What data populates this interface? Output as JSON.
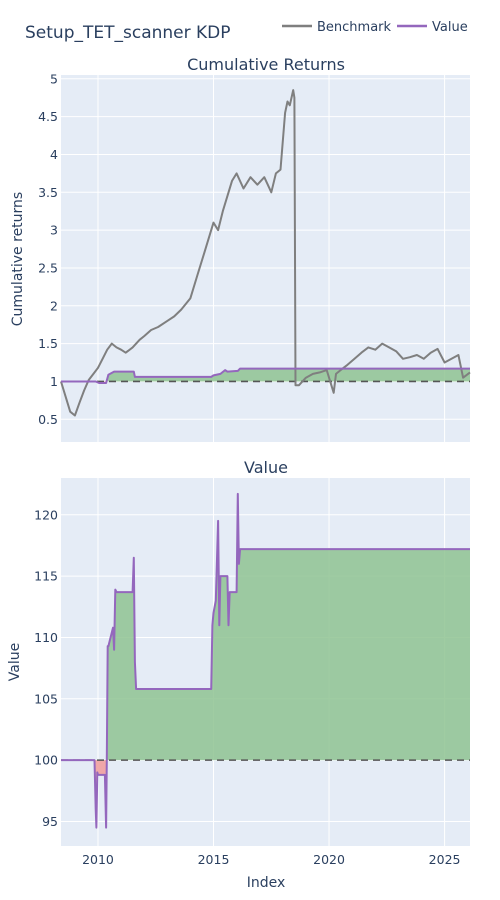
{
  "title": "Setup_TET_scanner KDP",
  "colors": {
    "plot_bg": "#e5ecf6",
    "grid": "#ffffff",
    "benchmark": "#7f7f7f",
    "value": "#9467bd",
    "fill_pos": "#8fc392",
    "fill_neg": "#f0a0a0",
    "baseline": "#555555"
  },
  "legend": {
    "placement": "top-right",
    "items": [
      "Benchmark",
      "Value"
    ]
  },
  "chart_data": [
    {
      "type": "line",
      "title": "Cumulative Returns",
      "xlabel": "",
      "ylabel": "Cumulative returns",
      "xlim": [
        2008.4,
        2026.1
      ],
      "ylim": [
        0.2,
        5.05
      ],
      "y_ticks": [
        "0.5",
        "1",
        "1.5",
        "2",
        "2.5",
        "3",
        "3.5",
        "4",
        "4.5",
        "5"
      ],
      "baseline": 1,
      "series": [
        {
          "name": "Benchmark",
          "x": [
            2008.4,
            2008.6,
            2008.8,
            2009.0,
            2009.2,
            2009.4,
            2009.6,
            2009.8,
            2010.0,
            2010.2,
            2010.4,
            2010.6,
            2010.8,
            2011.0,
            2011.2,
            2011.5,
            2011.8,
            2012.0,
            2012.3,
            2012.6,
            2013.0,
            2013.3,
            2013.6,
            2014.0,
            2014.3,
            2014.6,
            2014.8,
            2015.0,
            2015.2,
            2015.4,
            2015.6,
            2015.8,
            2016.0,
            2016.3,
            2016.6,
            2016.9,
            2017.2,
            2017.5,
            2017.7,
            2017.9,
            2018.1,
            2018.2,
            2018.3,
            2018.45,
            2018.5,
            2018.55,
            2018.7,
            2019.0,
            2019.3,
            2019.6,
            2019.9,
            2020.2,
            2020.3,
            2020.5,
            2020.8,
            2021.1,
            2021.4,
            2021.7,
            2022.0,
            2022.3,
            2022.6,
            2022.9,
            2023.2,
            2023.5,
            2023.8,
            2024.1,
            2024.4,
            2024.7,
            2025.0,
            2025.3,
            2025.6,
            2025.8,
            2026.1
          ],
          "y": [
            1.0,
            0.8,
            0.6,
            0.55,
            0.72,
            0.88,
            1.02,
            1.1,
            1.18,
            1.3,
            1.42,
            1.5,
            1.45,
            1.42,
            1.38,
            1.45,
            1.55,
            1.6,
            1.68,
            1.72,
            1.8,
            1.86,
            1.95,
            2.1,
            2.4,
            2.7,
            2.9,
            3.1,
            3.0,
            3.25,
            3.45,
            3.65,
            3.75,
            3.55,
            3.7,
            3.6,
            3.7,
            3.5,
            3.75,
            3.8,
            4.55,
            4.7,
            4.65,
            4.85,
            4.75,
            0.95,
            0.95,
            1.05,
            1.1,
            1.12,
            1.15,
            0.85,
            1.1,
            1.15,
            1.22,
            1.3,
            1.38,
            1.45,
            1.42,
            1.5,
            1.45,
            1.4,
            1.3,
            1.32,
            1.35,
            1.3,
            1.38,
            1.43,
            1.25,
            1.3,
            1.35,
            1.05,
            1.12
          ]
        },
        {
          "name": "Value",
          "x": [
            2008.4,
            2009.9,
            2010.05,
            2010.35,
            2010.45,
            2010.7,
            2011.55,
            2011.6,
            2014.9,
            2015.0,
            2015.3,
            2015.5,
            2015.6,
            2016.05,
            2016.15,
            2018.45,
            2018.55,
            2026.1
          ],
          "y": [
            1.0,
            1.0,
            0.98,
            0.98,
            1.09,
            1.13,
            1.13,
            1.06,
            1.06,
            1.08,
            1.1,
            1.15,
            1.13,
            1.14,
            1.17,
            1.17,
            1.17,
            1.17
          ]
        }
      ]
    },
    {
      "type": "area",
      "title": "Value",
      "xlabel": "Index",
      "ylabel": "Value",
      "xlim": [
        2008.4,
        2026.1
      ],
      "ylim": [
        93,
        123
      ],
      "x_ticks": [
        "2010",
        "2015",
        "2020",
        "2025"
      ],
      "y_ticks": [
        "95",
        "100",
        "105",
        "110",
        "115",
        "120"
      ],
      "baseline": 100,
      "series": [
        {
          "name": "Value",
          "x": [
            2008.4,
            2009.85,
            2009.9,
            2009.93,
            2009.97,
            2010.0,
            2010.05,
            2010.3,
            2010.35,
            2010.38,
            2010.42,
            2010.45,
            2010.65,
            2010.7,
            2010.75,
            2010.8,
            2011.5,
            2011.55,
            2011.6,
            2011.65,
            2014.9,
            2014.95,
            2015.0,
            2015.1,
            2015.2,
            2015.25,
            2015.3,
            2015.6,
            2015.65,
            2015.7,
            2016.0,
            2016.05,
            2016.1,
            2016.15,
            2026.1
          ],
          "y": [
            100.0,
            100.0,
            96.0,
            94.5,
            99.0,
            98.8,
            98.8,
            98.8,
            94.5,
            100.0,
            109.3,
            109.3,
            110.8,
            109.0,
            113.9,
            113.7,
            113.7,
            116.5,
            108.0,
            105.8,
            105.8,
            111.0,
            112.0,
            113.0,
            119.5,
            111.0,
            115.0,
            115.0,
            111.0,
            113.7,
            113.7,
            121.7,
            116.0,
            117.2,
            117.2
          ]
        }
      ]
    }
  ]
}
